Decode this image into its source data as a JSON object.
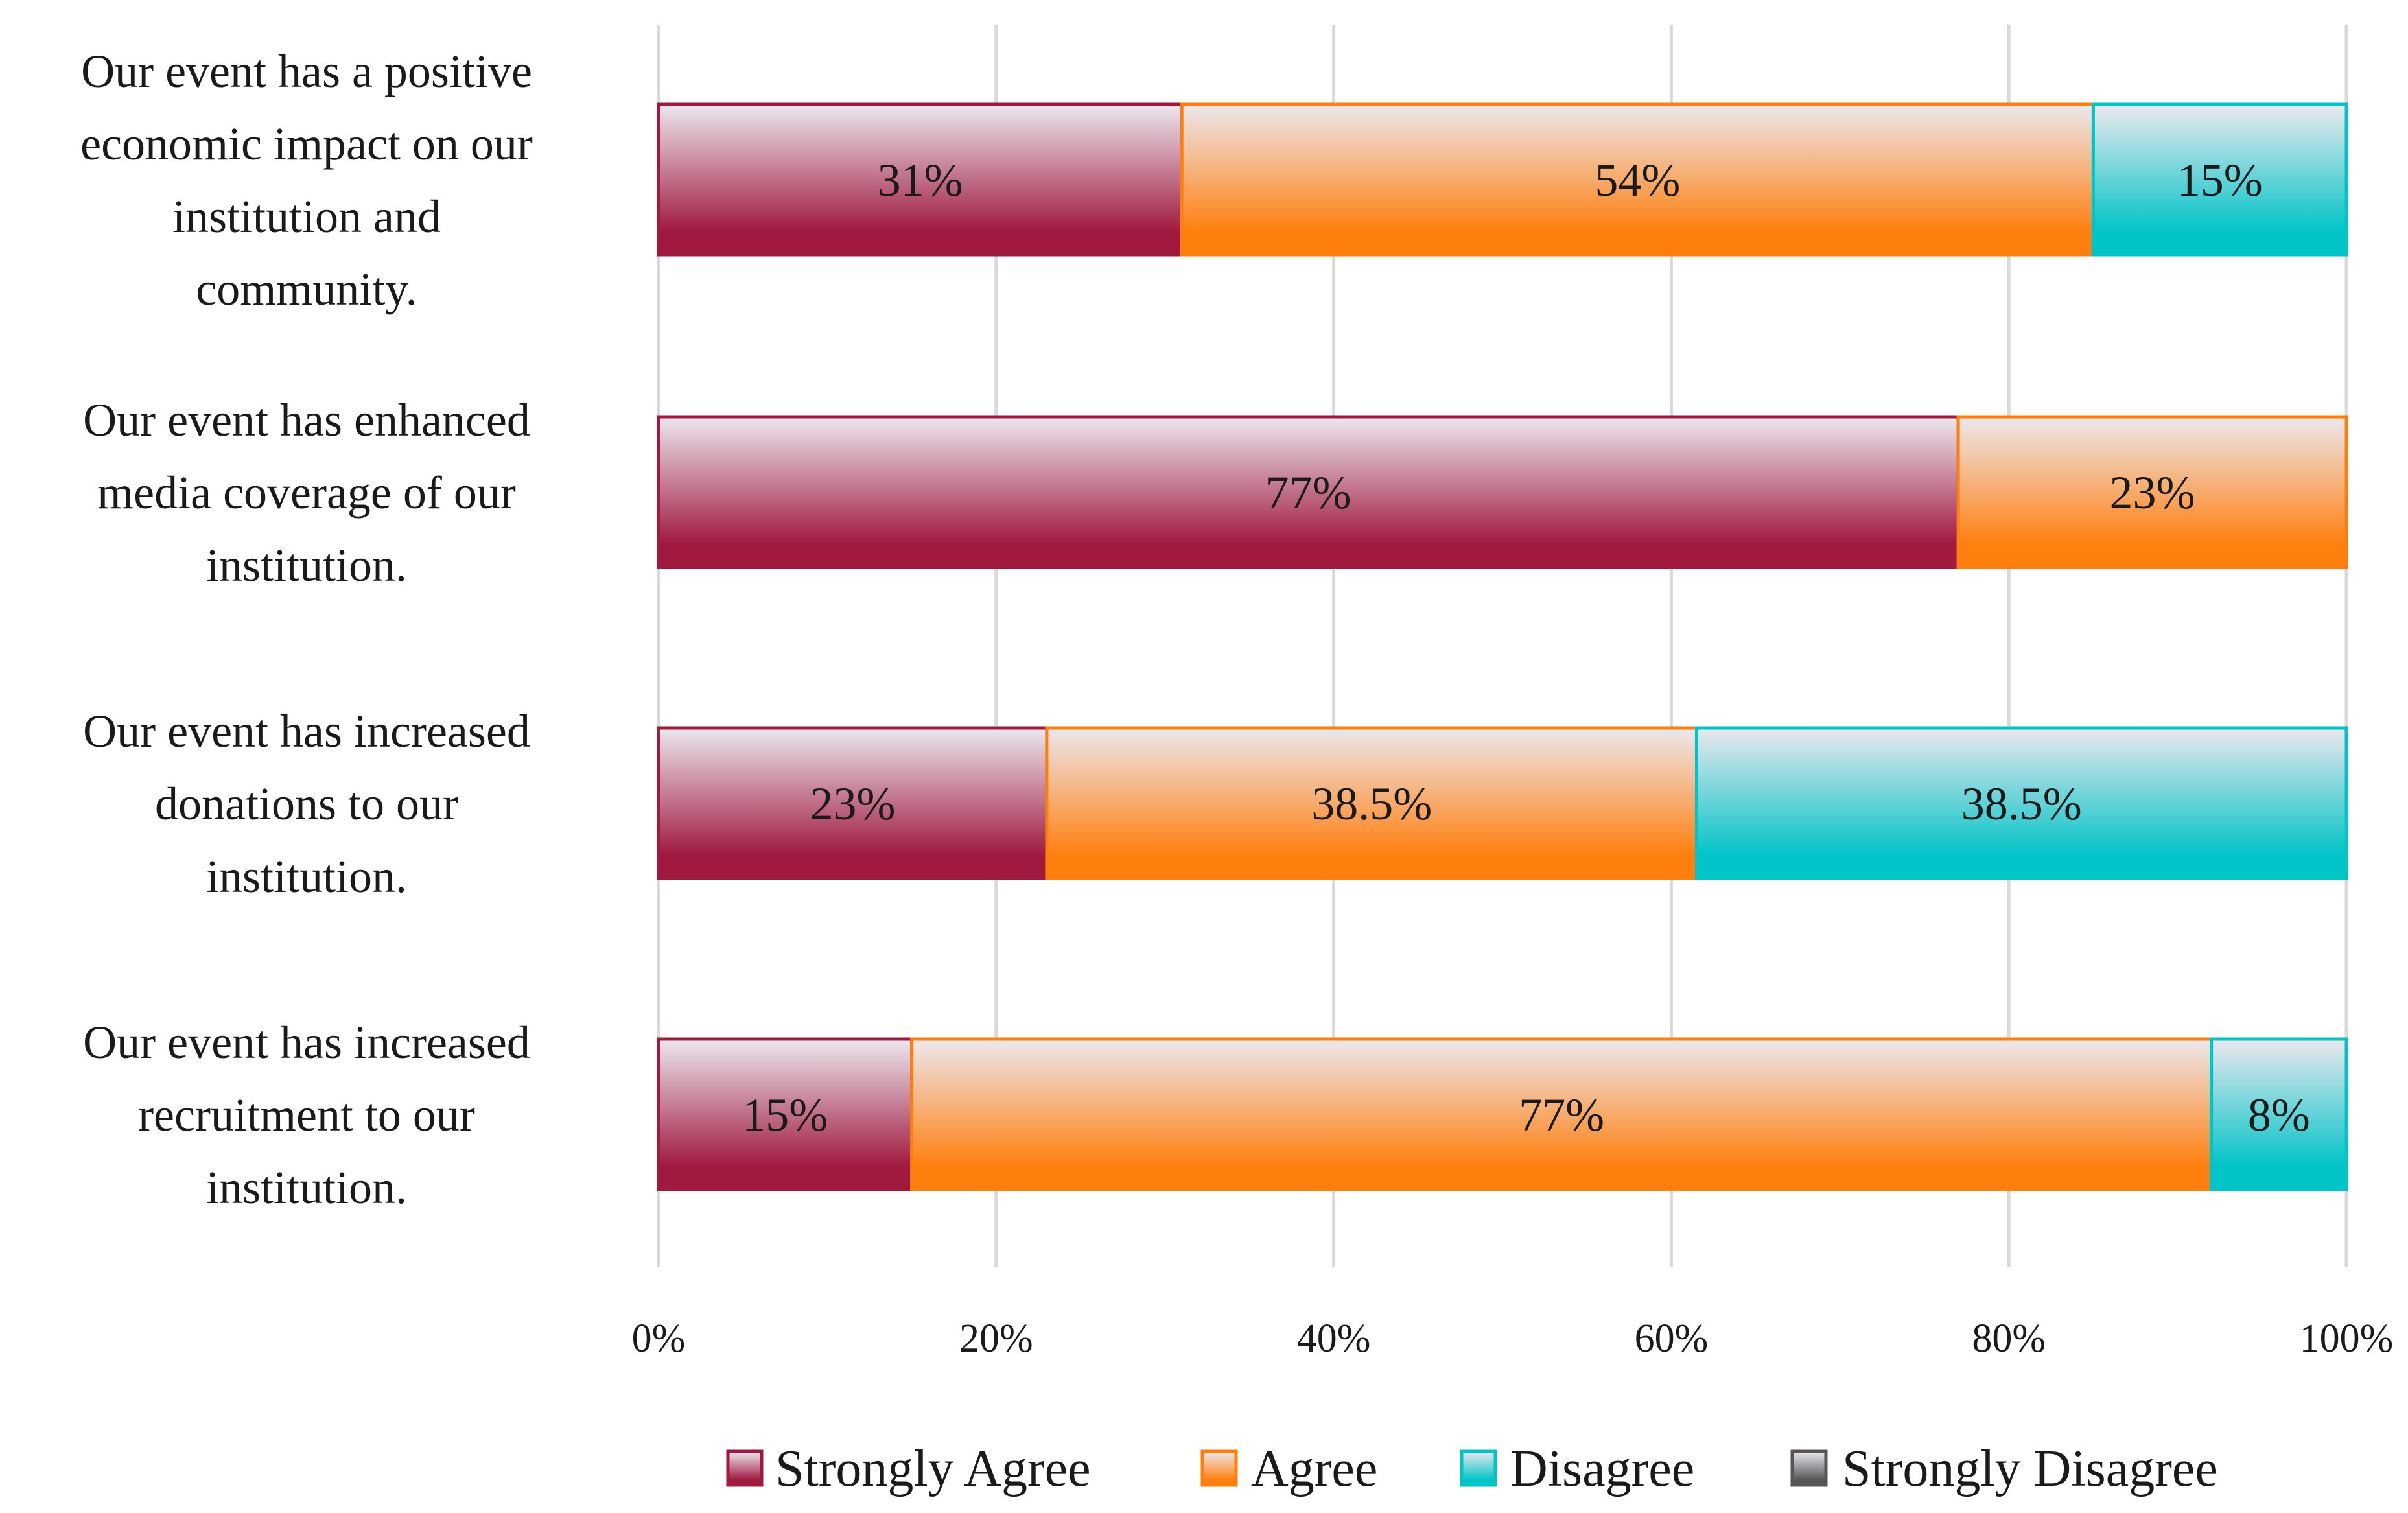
{
  "chart_data": {
    "type": "bar",
    "orientation": "horizontal",
    "stacked": "percent",
    "categories": [
      "Our event has a positive economic impact on our institution and community.",
      "Our event has enhanced media coverage of our institution.",
      "Our event has increased donations to our institution.",
      "Our event has increased recruitment to our institution."
    ],
    "category_lines": [
      [
        "Our event has a positive",
        "economic impact on our",
        "institution and",
        "community."
      ],
      [
        "Our event has enhanced",
        "media coverage of our",
        "institution."
      ],
      [
        "Our event has increased",
        "donations to our",
        "institution."
      ],
      [
        "Our event has increased",
        "recruitment to our",
        "institution."
      ]
    ],
    "series": [
      {
        "name": "Strongly Agree",
        "color": "#a0193f",
        "values": [
          31,
          77,
          23,
          15
        ],
        "labels": [
          "31%",
          "77%",
          "23%",
          "15%"
        ]
      },
      {
        "name": "Agree",
        "color": "#ff7f0e",
        "values": [
          54,
          23,
          38.5,
          77
        ],
        "labels": [
          "54%",
          "23%",
          "38.5%",
          "77%"
        ]
      },
      {
        "name": "Disagree",
        "color": "#00c4c8",
        "values": [
          15,
          0,
          38.5,
          8
        ],
        "labels": [
          "15%",
          "",
          "38.5%",
          "8%"
        ]
      },
      {
        "name": "Strongly Disagree",
        "color": "#555555",
        "values": [
          0,
          0,
          0,
          0
        ],
        "labels": [
          "",
          "",
          "",
          ""
        ]
      }
    ],
    "x_ticks": [
      "0%",
      "20%",
      "40%",
      "60%",
      "80%",
      "100%"
    ],
    "xlim": [
      0,
      100
    ],
    "grid": true,
    "legend_position": "bottom",
    "title": "",
    "xlabel": "",
    "ylabel": ""
  }
}
